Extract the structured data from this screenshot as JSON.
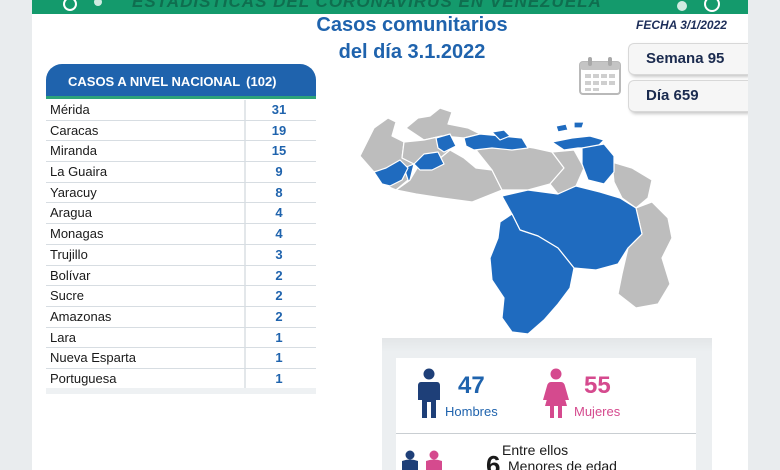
{
  "banner": {
    "text": "ESTADÍSTICAS DEL CORONAVIRUS EN VENEZUELA",
    "color": "#149a6c"
  },
  "header": {
    "title_line1": "Casos comunitarios",
    "title_line2": "del día 3.1.2022",
    "fecha": "FECHA 3/1/2022",
    "semana": "Semana 95",
    "dia": "Día 659",
    "calendar_icon": "calendar-icon"
  },
  "table": {
    "heading": "CASOS A NIVEL NACIONAL",
    "total": "(102)",
    "rows": [
      {
        "state": "Mérida",
        "cases": "31"
      },
      {
        "state": "Caracas",
        "cases": "19"
      },
      {
        "state": "Miranda",
        "cases": "15"
      },
      {
        "state": "La Guaira",
        "cases": "9"
      },
      {
        "state": "Yaracuy",
        "cases": "8"
      },
      {
        "state": "Aragua",
        "cases": "4"
      },
      {
        "state": "Monagas",
        "cases": "4"
      },
      {
        "state": "Trujillo",
        "cases": "3"
      },
      {
        "state": "Bolívar",
        "cases": "2"
      },
      {
        "state": "Sucre",
        "cases": "2"
      },
      {
        "state": "Amazonas",
        "cases": "2"
      },
      {
        "state": "Lara",
        "cases": "1"
      },
      {
        "state": "Nueva Esparta",
        "cases": "1"
      },
      {
        "state": "Portuguesa",
        "cases": "1"
      }
    ]
  },
  "map": {
    "highlight_color": "#1f6bbf",
    "base_color": "#bdbdbd"
  },
  "stats": {
    "hombres_num": "47",
    "hombres_label": "Hombres",
    "mujeres_num": "55",
    "mujeres_label": "Mujeres",
    "entre": "Entre ellos",
    "menores_num": "6",
    "menores_label": "Menores de edad",
    "colors": {
      "male": "#1e3f78",
      "female": "#d54a8e",
      "male_text": "#1f63ad",
      "female_text": "#d54a8e"
    }
  }
}
